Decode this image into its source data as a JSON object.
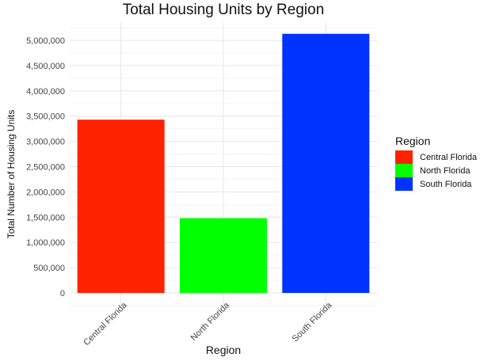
{
  "chart_data": {
    "type": "bar",
    "title": "Total Housing Units by Region",
    "xlabel": "Region",
    "ylabel": "Total Number of Housing Units",
    "categories": [
      "Central Florida",
      "North Florida",
      "South Florida"
    ],
    "values": [
      3430000,
      1480000,
      5130000
    ],
    "colors": [
      "#ff2200",
      "#00ff00",
      "#0033ff"
    ],
    "ylim": [
      0,
      5250000
    ],
    "yticks": [
      0,
      500000,
      1000000,
      1500000,
      2000000,
      2500000,
      3000000,
      3500000,
      4000000,
      4500000,
      5000000
    ],
    "ytick_labels": [
      "0",
      "500,000",
      "1,000,000",
      "1,500,000",
      "2,000,000",
      "2,500,000",
      "3,000,000",
      "3,500,000",
      "4,000,000",
      "4,500,000",
      "5,000,000"
    ],
    "grid": true,
    "legend": {
      "title": "Region",
      "position": "right",
      "entries": [
        "Central Florida",
        "North Florida",
        "South Florida"
      ]
    }
  }
}
